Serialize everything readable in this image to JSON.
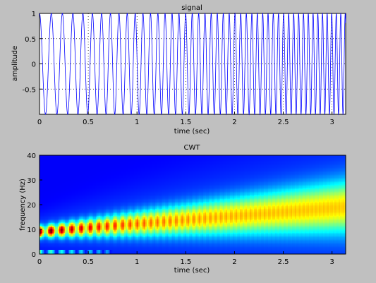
{
  "chart_data": [
    {
      "type": "line",
      "title": "signal",
      "xlabel": "time (sec)",
      "ylabel": "amplitude",
      "xlim": [
        0,
        3.14
      ],
      "ylim": [
        -1,
        1
      ],
      "xticks": [
        0,
        0.5,
        1,
        1.5,
        2,
        2.5,
        3
      ],
      "yticks": [
        -0.5,
        0,
        0.5,
        1
      ],
      "ytick_labels": [
        "-0.5",
        "0",
        "0.5",
        "1"
      ],
      "xtick_labels": [
        "0",
        "0.5",
        "1",
        "1.5",
        "2",
        "2.5",
        "3"
      ],
      "grid": "dotted",
      "series": [
        {
          "color": "#0000ff",
          "signal": "chirp",
          "f_start_hz": 8,
          "f_end_hz": 22
        }
      ]
    },
    {
      "type": "heatmap",
      "title": "CWT",
      "xlabel": "time (sec)",
      "ylabel": "frequency (Hz)",
      "xlim": [
        0,
        3.14
      ],
      "ylim": [
        0,
        40
      ],
      "xticks": [
        0,
        0.5,
        1,
        1.5,
        2,
        2.5,
        3
      ],
      "xtick_labels": [
        "0",
        "0.5",
        "1",
        "1.5",
        "2",
        "2.5",
        "3"
      ],
      "yticks": [
        0,
        10,
        20,
        30,
        40
      ],
      "ytick_labels": [
        "0",
        "10",
        "20",
        "30",
        "40"
      ],
      "colormap": "jet",
      "ridge": {
        "freq_start_hz": 9,
        "freq_end_hz": 19
      }
    }
  ]
}
